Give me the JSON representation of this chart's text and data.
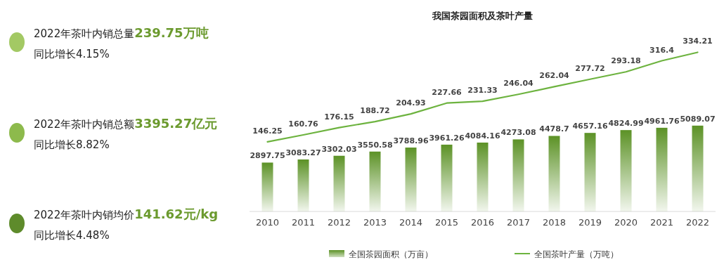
{
  "chart_data": [
    {
      "type": "other",
      "annotations": [
        "2022年茶叶内销总量",
        "239.75万吨",
        "同比增长4.15%",
        "2022年茶叶内销总额",
        "3395.27亿元",
        "同比增长8.82%",
        "2022年茶叶内销均价",
        "141.62元/kg",
        "同比增长4.48%"
      ],
      "colors": [
        "#a3c964",
        "#8dba4c",
        "#5e8b2b"
      ]
    },
    {
      "type": "bar",
      "title": "我国茶园面积及茶叶产量",
      "categories": [
        "2010",
        "2011",
        "2012",
        "2013",
        "2014",
        "2015",
        "2016",
        "2017",
        "2018",
        "2019",
        "2020",
        "2021",
        "2022"
      ],
      "series": [
        {
          "name": "全国茶园面积（万亩）",
          "type": "bar",
          "color": "#5c9226",
          "values": [
            2897.75,
            3083.27,
            3302.03,
            3550.58,
            3788.96,
            3961.26,
            4084.16,
            4273.08,
            4478.7,
            4657.16,
            4824.99,
            4961.76,
            5089.07
          ]
        },
        {
          "name": "全国茶叶产量（万吨）",
          "type": "line",
          "axis": "y2",
          "color": "#6db33f",
          "values": [
            146.25,
            160.76,
            176.15,
            188.72,
            204.93,
            227.66,
            231.33,
            246.04,
            262.04,
            277.72,
            293.18,
            316.4,
            334.21
          ]
        }
      ],
      "tick_labels": "x",
      "data_labels": true,
      "legend": "bottom"
    }
  ]
}
